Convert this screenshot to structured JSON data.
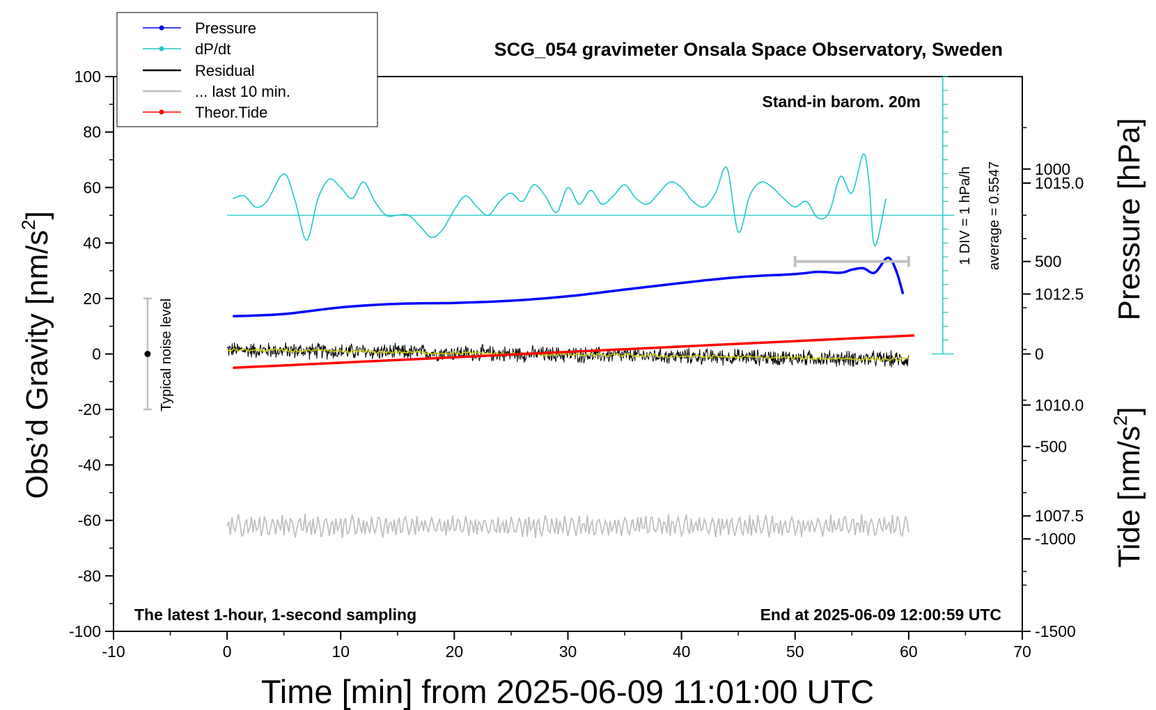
{
  "chart_data": {
    "type": "line",
    "title": "SCG_054 gravimeter Onsala Space Observatory, Sweden",
    "xlabel": "Time [min] from 2025-06-09 11:01:00 UTC",
    "ylabel_left_main": "Obs’d Gravity [nm/s",
    "ylabel_left_sup": "2",
    "ylabel_left_close": "]",
    "ylabel_right_pressure": "Pressure [hPa]",
    "ylabel_right_tide_main": "Tide [nm/s",
    "ylabel_right_tide_sup": "2",
    "ylabel_right_tide_close": "]",
    "xlim": [
      -10,
      70
    ],
    "ylim": [
      -100,
      100
    ],
    "pressure_ylim": [
      1004.9,
      1017.4
    ],
    "tide_ylim": [
      -1500,
      1500
    ],
    "x_ticks": [
      "-10",
      "0",
      "10",
      "20",
      "30",
      "40",
      "50",
      "60",
      "70"
    ],
    "y_ticks": [
      "-100",
      "-80",
      "-60",
      "-40",
      "-20",
      "0",
      "20",
      "40",
      "60",
      "80",
      "100"
    ],
    "pressure_ticks": [
      "1007.5",
      "1010.0",
      "1012.5",
      "1015.0"
    ],
    "tide_ticks": [
      "-1500",
      "-1000",
      "-500",
      "0",
      "500",
      "1000"
    ],
    "legend": {
      "placement": "top-left",
      "entries": [
        {
          "label": "Pressure",
          "color": "#0000ff",
          "marker": true
        },
        {
          "label": "dP/dt",
          "color": "#20c8c8",
          "marker": true
        },
        {
          "label": "Residual",
          "color": "#000000",
          "marker": false
        },
        {
          "label": "... last 10 min.",
          "color": "#c0c0c0",
          "marker": false
        },
        {
          "label": "Theor.Tide",
          "color": "#ff0000",
          "marker": true
        }
      ]
    },
    "annotations": {
      "barometer": "Stand-in barom. 20m",
      "bottom_left": "The latest 1-hour, 1-second sampling",
      "bottom_right": "End at 2025-06-09 12:00:59 UTC",
      "noise_label": "Typical noise level",
      "div_label": "1 DIV = 1 hPa/h",
      "average_label": "average = 0.5547"
    },
    "noise_bar": {
      "x": -7,
      "y_center": 0,
      "y_min": -20,
      "y_max": 20
    },
    "last10_bar": {
      "x_start": 50,
      "x_end": 60,
      "tide_value": 500
    },
    "dpdt_scale": {
      "x": 63,
      "y_baseline": 0,
      "y_top": 100,
      "tick_step": 5
    },
    "dpdt_average_line_y": 50,
    "series": [
      {
        "name": "Pressure",
        "axis": "pressure",
        "color": "#0000ff",
        "x": [
          0.5,
          5,
          10,
          15,
          20,
          25,
          30,
          35,
          40,
          45,
          50,
          52,
          54,
          55,
          56,
          57,
          58,
          58.5,
          59,
          59.5
        ],
        "y": [
          1012.0,
          1012.05,
          1012.2,
          1012.28,
          1012.3,
          1012.35,
          1012.45,
          1012.6,
          1012.75,
          1012.88,
          1012.95,
          1013.0,
          1012.98,
          1013.05,
          1013.08,
          1012.98,
          1013.3,
          1013.25,
          1012.95,
          1012.5
        ]
      },
      {
        "name": "dP/dt",
        "axis": "gravity",
        "color": "#20c8c8",
        "x": [
          0.5,
          1.5,
          2.5,
          3.5,
          5,
          6,
          7,
          8,
          9,
          10,
          11,
          12,
          13,
          14,
          15,
          16,
          17,
          18,
          19,
          20,
          21,
          22,
          23,
          24,
          25,
          26,
          27,
          28,
          29,
          30,
          31,
          32,
          33,
          34,
          35,
          36,
          37,
          38,
          39,
          40,
          41,
          42,
          43,
          44,
          45,
          46,
          47,
          48,
          49,
          50,
          51,
          52,
          53,
          54,
          55,
          56,
          56.5,
          57,
          58
        ],
        "y": [
          56,
          57,
          53,
          55,
          65,
          55,
          41,
          56,
          63,
          60,
          56,
          62,
          55,
          50,
          50,
          50,
          46,
          42,
          45,
          52,
          57,
          53,
          50,
          55,
          58,
          55,
          61,
          57,
          51,
          60,
          54,
          59,
          54,
          57,
          61,
          56,
          54,
          58,
          62,
          60,
          55,
          53,
          58,
          67,
          44,
          57,
          62,
          60,
          56,
          53,
          55,
          49,
          51,
          64,
          58,
          72,
          62,
          39,
          56
        ]
      },
      {
        "name": "Residual",
        "axis": "gravity",
        "color": "#000000",
        "x_range": [
          0,
          60
        ],
        "trend_y": [
          1.5,
          -2.0
        ],
        "noise_amplitude": 3.5
      },
      {
        "name": "Residual smoothed",
        "axis": "gravity",
        "color": "#d0d000",
        "x_range": [
          0,
          60
        ],
        "trend_y": [
          1.5,
          -2.0
        ]
      },
      {
        "name": "... last 10 min.",
        "axis": "gravity",
        "color": "#c0c0c0",
        "x_range": [
          0,
          60
        ],
        "center_y": -62,
        "amplitude": 4
      },
      {
        "name": "Theor.Tide",
        "axis": "tide",
        "color": "#ff0000",
        "x": [
          0.5,
          60.5
        ],
        "y": [
          -75,
          100
        ]
      }
    ]
  }
}
